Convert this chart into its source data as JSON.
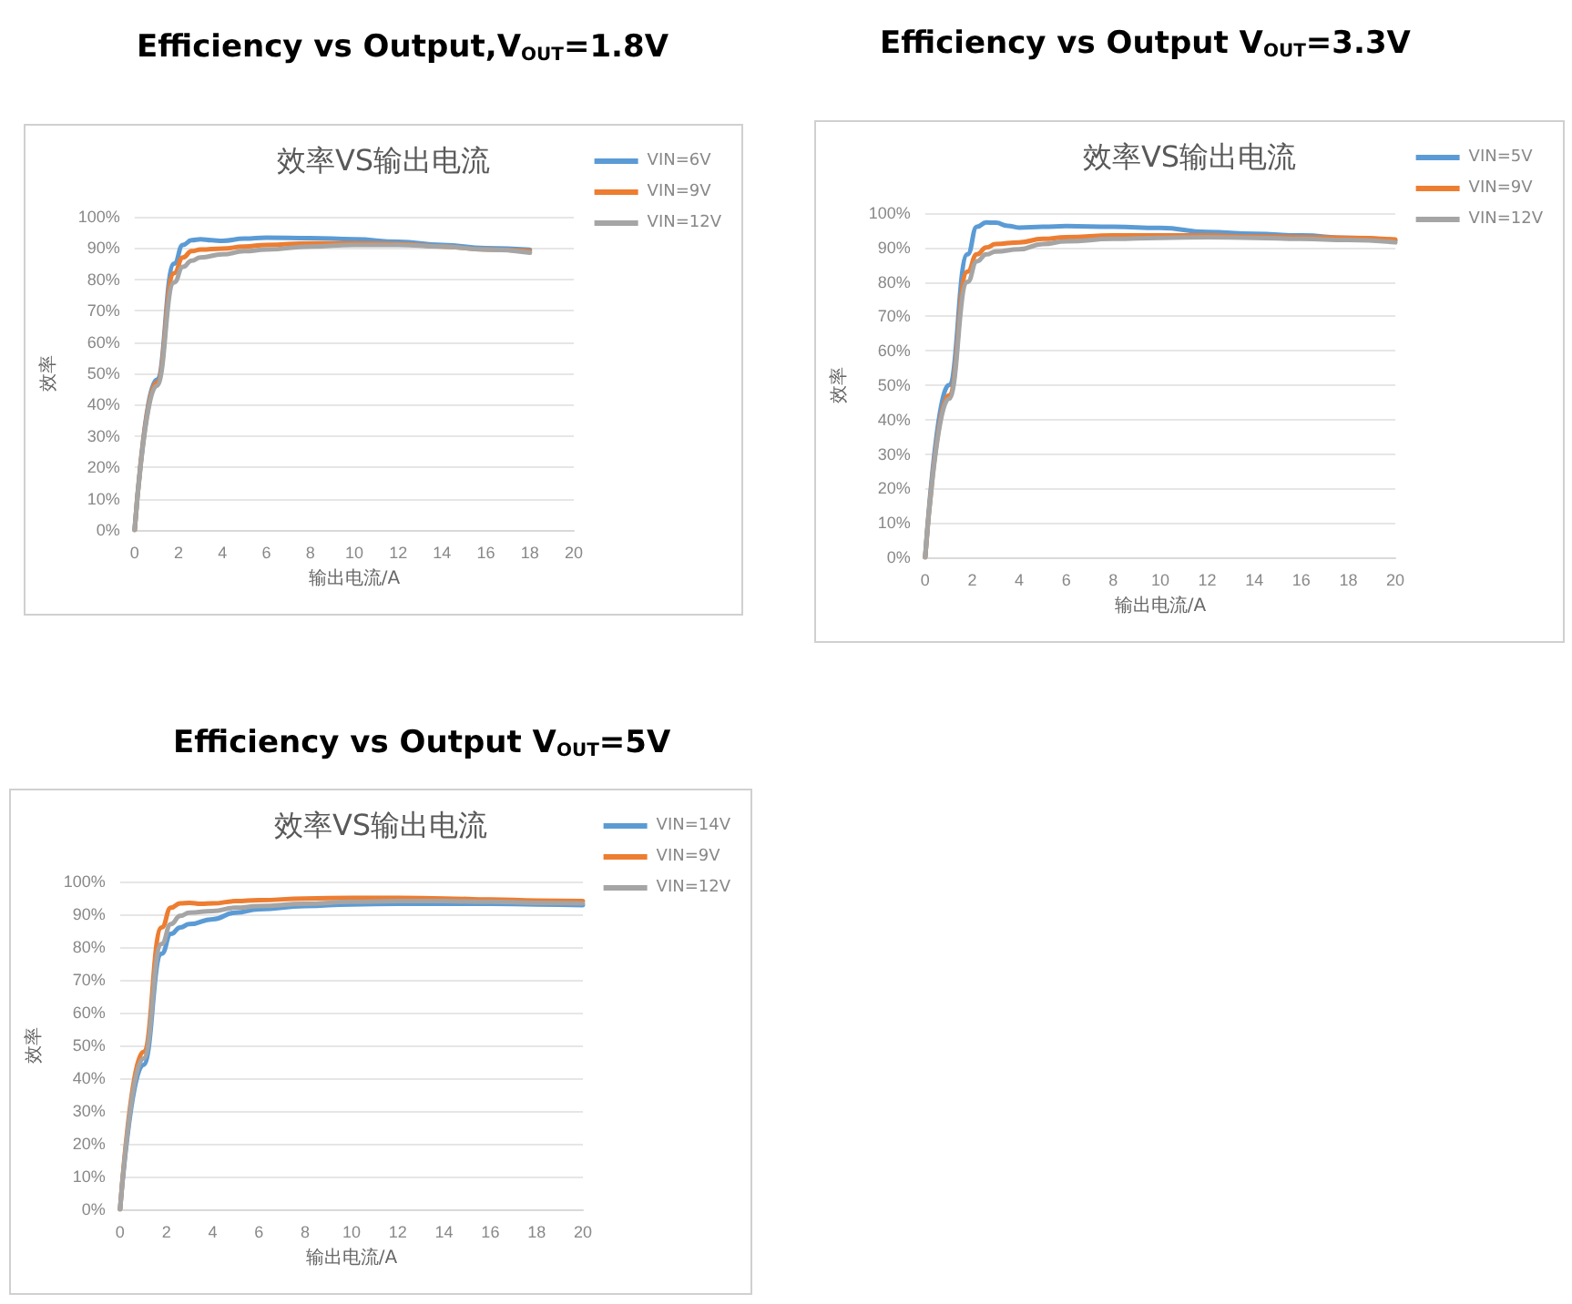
{
  "chart_data": [
    {
      "type": "line",
      "title": "Efficiency vs Output,V$_{OUT}$=1.8V",
      "subtitle": "效率VS输出电流",
      "xlabel": "输出电流/A",
      "ylabel": "效率",
      "xlim": [
        0,
        20
      ],
      "xticks": [
        0,
        2,
        4,
        6,
        8,
        10,
        12,
        14,
        16,
        18,
        20
      ],
      "ylim": [
        0,
        100
      ],
      "yticks": [
        {
          "value": 0,
          "label": "0%"
        },
        {
          "value": 10,
          "label": "10%"
        },
        {
          "value": 20,
          "label": "20%"
        },
        {
          "value": 30,
          "label": "30%"
        },
        {
          "value": 40,
          "label": "40%"
        },
        {
          "value": 50,
          "label": "50%"
        },
        {
          "value": 60,
          "label": "60%"
        },
        {
          "value": 70,
          "label": "70%"
        },
        {
          "value": 80,
          "label": "80%"
        },
        {
          "value": 90,
          "label": "90%"
        },
        {
          "value": 100,
          "label": "100%"
        }
      ],
      "grid": "y",
      "legend": "right",
      "marker": "none",
      "line_style": "solid",
      "series": [
        {
          "name": "VIN=6V",
          "color": "#5b9bd5",
          "x": [
            0,
            1,
            1.8,
            2.2,
            2.6,
            3,
            3.5,
            4,
            5,
            6,
            8,
            10,
            12,
            14,
            16,
            18
          ],
          "values": [
            0,
            48,
            85,
            91,
            92.5,
            92.8,
            92.5,
            92.3,
            93,
            93.3,
            93.2,
            92.8,
            92,
            91,
            90,
            89.5
          ]
        },
        {
          "name": "VIN=9V",
          "color": "#ed7d31",
          "x": [
            0,
            1,
            1.8,
            2.2,
            2.6,
            3,
            4,
            5,
            6,
            8,
            10,
            12,
            14,
            16,
            18
          ],
          "values": [
            0,
            47,
            82,
            87,
            89,
            89.5,
            89.8,
            90.5,
            91,
            91.5,
            91.5,
            91.3,
            90.5,
            89.5,
            89
          ]
        },
        {
          "name": "VIN=12V",
          "color": "#a5a5a5",
          "x": [
            0,
            1,
            1.8,
            2.2,
            2.6,
            3,
            4,
            5,
            6,
            8,
            10,
            12,
            14,
            16,
            18
          ],
          "values": [
            0,
            46,
            79,
            84,
            86,
            87,
            88,
            89,
            89.5,
            90.5,
            91,
            91,
            90.5,
            89.5,
            88.5
          ]
        }
      ]
    },
    {
      "type": "line",
      "title": "Efficiency vs Output V$_{OUT}$=3.3V",
      "subtitle": "效率VS输出电流",
      "xlabel": "输出电流/A",
      "ylabel": "效率",
      "xlim": [
        0,
        20
      ],
      "xticks": [
        0,
        2,
        4,
        6,
        8,
        10,
        12,
        14,
        16,
        18,
        20
      ],
      "ylim": [
        0,
        100
      ],
      "yticks": [
        {
          "value": 0,
          "label": "0%"
        },
        {
          "value": 10,
          "label": "10%"
        },
        {
          "value": 20,
          "label": "20%"
        },
        {
          "value": 30,
          "label": "30%"
        },
        {
          "value": 40,
          "label": "40%"
        },
        {
          "value": 50,
          "label": "50%"
        },
        {
          "value": 60,
          "label": "60%"
        },
        {
          "value": 70,
          "label": "70%"
        },
        {
          "value": 80,
          "label": "80%"
        },
        {
          "value": 90,
          "label": "90%"
        },
        {
          "value": 100,
          "label": "100%"
        }
      ],
      "grid": "y",
      "legend": "right",
      "marker": "none",
      "line_style": "solid",
      "series": [
        {
          "name": "VIN=5V",
          "color": "#5b9bd5",
          "x": [
            0,
            1,
            1.8,
            2.2,
            2.6,
            3,
            3.5,
            4,
            5,
            6,
            8,
            10,
            12,
            14,
            16,
            18,
            20
          ],
          "values": [
            0,
            50,
            88,
            96,
            97.3,
            97.2,
            96.3,
            95.8,
            96,
            96.2,
            96,
            95.7,
            94.5,
            94,
            93.5,
            92.8,
            92
          ]
        },
        {
          "name": "VIN=9V",
          "color": "#ed7d31",
          "x": [
            0,
            1,
            1.8,
            2.2,
            2.6,
            3,
            4,
            5,
            6,
            8,
            10,
            12,
            14,
            16,
            18,
            20
          ],
          "values": [
            0,
            47,
            83,
            88,
            90,
            91,
            91.5,
            92.5,
            93,
            93.5,
            93.5,
            93.5,
            93.2,
            93,
            92.8,
            92.3
          ]
        },
        {
          "name": "VIN=12V",
          "color": "#a5a5a5",
          "x": [
            0,
            1,
            1.8,
            2.2,
            2.6,
            3,
            4,
            5,
            6,
            8,
            10,
            12,
            14,
            16,
            18,
            20
          ],
          "values": [
            0,
            46,
            80,
            86,
            88,
            88.8,
            89.5,
            91,
            91.8,
            92.5,
            92.8,
            93,
            92.8,
            92.5,
            92.2,
            91.5
          ]
        }
      ]
    },
    {
      "type": "line",
      "title": "Efficiency vs Output  V$_{OUT}$=5V",
      "subtitle": "效率VS输出电流",
      "xlabel": "输出电流/A",
      "ylabel": "效率",
      "xlim": [
        0,
        20
      ],
      "xticks": [
        0,
        2,
        4,
        6,
        8,
        10,
        12,
        14,
        16,
        18,
        20
      ],
      "ylim": [
        0,
        100
      ],
      "yticks": [
        {
          "value": 0,
          "label": "0%"
        },
        {
          "value": 10,
          "label": "10%"
        },
        {
          "value": 20,
          "label": "20%"
        },
        {
          "value": 30,
          "label": "30%"
        },
        {
          "value": 40,
          "label": "40%"
        },
        {
          "value": 50,
          "label": "50%"
        },
        {
          "value": 60,
          "label": "60%"
        },
        {
          "value": 70,
          "label": "70%"
        },
        {
          "value": 80,
          "label": "80%"
        },
        {
          "value": 90,
          "label": "90%"
        },
        {
          "value": 100,
          "label": "100%"
        }
      ],
      "grid": "y",
      "legend": "right",
      "marker": "none",
      "line_style": "solid",
      "series": [
        {
          "name": "VIN=14V",
          "color": "#5b9bd5",
          "x": [
            0,
            1,
            1.8,
            2.2,
            2.6,
            3,
            4,
            5,
            6,
            8,
            10,
            12,
            14,
            16,
            18,
            20
          ],
          "values": [
            0,
            44,
            78,
            84,
            86,
            87,
            88.5,
            90.5,
            91.5,
            92.5,
            93,
            93.2,
            93.2,
            93.2,
            93,
            92.8
          ]
        },
        {
          "name": "VIN=9V",
          "color": "#ed7d31",
          "x": [
            0,
            1,
            1.8,
            2.2,
            2.6,
            3,
            3.5,
            4,
            5,
            6,
            8,
            10,
            12,
            14,
            16,
            18,
            20
          ],
          "values": [
            0,
            48,
            86,
            92,
            93.3,
            93.5,
            93.2,
            93.3,
            94,
            94.3,
            94.8,
            95,
            95,
            94.8,
            94.5,
            94.2,
            94
          ]
        },
        {
          "name": "VIN=12V",
          "color": "#a5a5a5",
          "x": [
            0,
            1,
            1.8,
            2.2,
            2.6,
            3,
            4,
            5,
            6,
            8,
            10,
            12,
            14,
            16,
            18,
            20
          ],
          "values": [
            0,
            46,
            81,
            87,
            89.5,
            90.5,
            91,
            92,
            92.5,
            93.2,
            93.8,
            94,
            94,
            93.8,
            93.5,
            93.3
          ]
        }
      ]
    }
  ]
}
